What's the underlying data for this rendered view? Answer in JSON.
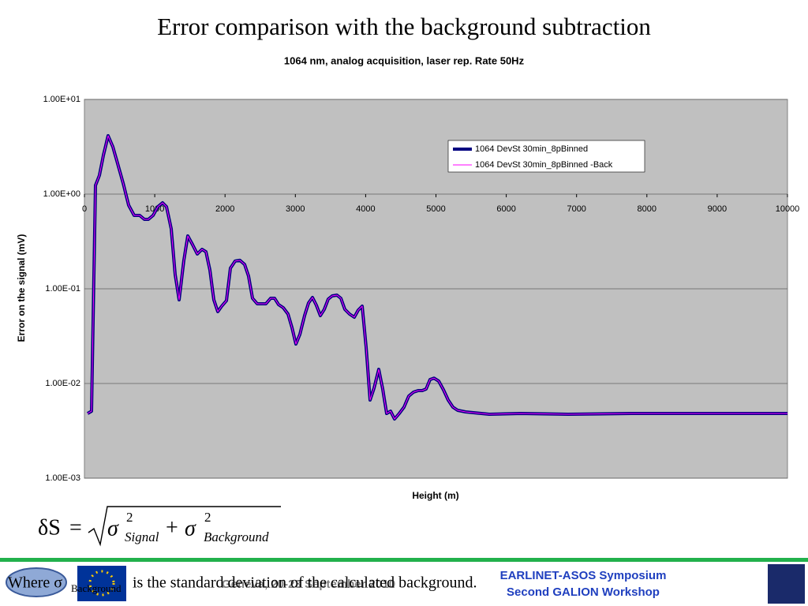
{
  "chart_data": {
    "type": "line",
    "title": "Error comparison with the background subtraction",
    "subtitle": "1064 nm, analog acquisition, laser rep. Rate 50Hz",
    "xlabel": "Height (m)",
    "ylabel": "Error on the signal (mV)",
    "log_y": true,
    "grid": true,
    "legend": "upper right",
    "xlim": [
      0,
      10000
    ],
    "xticks": [
      0,
      1000,
      2000,
      3000,
      4000,
      5000,
      6000,
      7000,
      8000,
      9000,
      10000
    ],
    "ylim": [
      0.001,
      10
    ],
    "yticks": [
      {
        "value": 0.001,
        "label": "1.00E-03"
      },
      {
        "value": 0.01,
        "label": "1.00E-02"
      },
      {
        "value": 0.1,
        "label": "1.00E-01"
      },
      {
        "value": 1,
        "label": "1.00E+00"
      },
      {
        "value": 10,
        "label": "1.00E+01"
      }
    ],
    "x": [
      45,
      101,
      157,
      213,
      269,
      337,
      404,
      471,
      550,
      629,
      707,
      786,
      853,
      909,
      976,
      1044,
      1111,
      1167,
      1235,
      1291,
      1347,
      1414,
      1470,
      1538,
      1605,
      1672,
      1728,
      1785,
      1841,
      1897,
      1953,
      2020,
      2076,
      2144,
      2211,
      2278,
      2334,
      2391,
      2458,
      2514,
      2581,
      2649,
      2705,
      2761,
      2828,
      2896,
      2952,
      3008,
      3064,
      3131,
      3187,
      3244,
      3300,
      3356,
      3412,
      3468,
      3524,
      3591,
      3648,
      3704,
      3771,
      3838,
      3895,
      3951,
      4007,
      4063,
      4119,
      4186,
      4242,
      4299,
      4355,
      4411,
      4478,
      4545,
      4613,
      4680,
      4747,
      4804,
      4860,
      4916,
      4972,
      5039,
      5107,
      5174,
      5241,
      5309,
      5421,
      5533,
      5758,
      6207,
      6880,
      7778,
      8676,
      9574,
      10000
    ],
    "series": [
      {
        "name": "1064 DevSt 30min_8pBinned",
        "color": "#000080",
        "width": 4,
        "values": [
          0.00482,
          0.0051,
          1.235,
          1.58,
          2.56,
          4.14,
          3.16,
          2.11,
          1.31,
          0.764,
          0.596,
          0.596,
          0.541,
          0.541,
          0.596,
          0.736,
          0.81,
          0.736,
          0.43,
          0.141,
          0.0764,
          0.2,
          0.362,
          0.293,
          0.233,
          0.261,
          0.246,
          0.158,
          0.0764,
          0.0574,
          0.0656,
          0.075,
          0.165,
          0.196,
          0.2,
          0.181,
          0.136,
          0.0794,
          0.0695,
          0.0695,
          0.0695,
          0.0794,
          0.0794,
          0.0681,
          0.0631,
          0.0541,
          0.039,
          0.0261,
          0.0329,
          0.0521,
          0.0708,
          0.081,
          0.0668,
          0.0521,
          0.0607,
          0.0779,
          0.0841,
          0.0858,
          0.0794,
          0.0607,
          0.0541,
          0.0501,
          0.0596,
          0.0656,
          0.0242,
          0.00668,
          0.00891,
          0.0141,
          0.00875,
          0.00482,
          0.0051,
          0.00422,
          0.00482,
          0.00562,
          0.00736,
          0.0081,
          0.00841,
          0.00841,
          0.00875,
          0.011,
          0.0114,
          0.0106,
          0.00858,
          0.00668,
          0.00562,
          0.00521,
          0.00501,
          0.00492,
          0.00473,
          0.00482,
          0.00473,
          0.00482,
          0.00482,
          0.00482,
          0.00482
        ]
      },
      {
        "name": "1064 DevSt 30min_8pBinned -Back",
        "color": "#ff00ff",
        "width": 1,
        "values": [
          0.00482,
          0.0051,
          1.235,
          1.58,
          2.56,
          4.14,
          3.16,
          2.11,
          1.31,
          0.764,
          0.596,
          0.596,
          0.541,
          0.541,
          0.596,
          0.736,
          0.81,
          0.736,
          0.43,
          0.141,
          0.0764,
          0.2,
          0.362,
          0.293,
          0.233,
          0.261,
          0.246,
          0.158,
          0.0764,
          0.0574,
          0.0656,
          0.075,
          0.165,
          0.196,
          0.2,
          0.181,
          0.136,
          0.0794,
          0.0695,
          0.0695,
          0.0695,
          0.0794,
          0.0794,
          0.0681,
          0.0631,
          0.0541,
          0.039,
          0.0261,
          0.0329,
          0.0521,
          0.0708,
          0.081,
          0.0668,
          0.0521,
          0.0607,
          0.0779,
          0.0841,
          0.0858,
          0.0794,
          0.0607,
          0.0541,
          0.0501,
          0.0596,
          0.0656,
          0.0242,
          0.00668,
          0.00891,
          0.0141,
          0.00875,
          0.00482,
          0.0051,
          0.00422,
          0.00482,
          0.00562,
          0.00736,
          0.0081,
          0.00841,
          0.00841,
          0.00875,
          0.011,
          0.0114,
          0.0106,
          0.00858,
          0.00668,
          0.00562,
          0.00521,
          0.00501,
          0.00492,
          0.00473,
          0.00482,
          0.00473,
          0.00482,
          0.00482,
          0.00482,
          0.00482
        ]
      }
    ]
  },
  "formula": {
    "lhs": "δS",
    "eq": "=",
    "sigma1": "σ",
    "sup1": "2",
    "sub1": "Signal",
    "plus": "+",
    "sigma2": "σ",
    "sup2": "2",
    "sub2": "Background"
  },
  "footer": {
    "note_start": "Where σ",
    "note_sub": "Background",
    "note_end": "is the standard deviation of the calculated background.",
    "venue": "Geneva, 20-23 September 2010",
    "event1": "EARLINET-ASOS Symposium",
    "event2": "Second GALION Workshop"
  }
}
